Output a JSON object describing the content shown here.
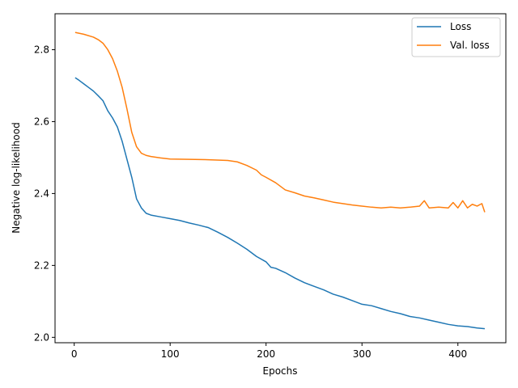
{
  "chart_data": {
    "type": "line",
    "title": "",
    "xlabel": "Epochs",
    "ylabel": "Negative log-likelihood",
    "xlim": [
      -20,
      450
    ],
    "ylim": [
      1.985,
      2.9
    ],
    "xticks": [
      0,
      100,
      200,
      300,
      400
    ],
    "yticks": [
      2.0,
      2.2,
      2.4,
      2.6,
      2.8
    ],
    "grid": false,
    "legend_position": "top-right",
    "series": [
      {
        "name": "Loss",
        "color": "#1f77b4",
        "x": [
          1,
          5,
          10,
          15,
          20,
          25,
          30,
          35,
          40,
          45,
          50,
          55,
          60,
          65,
          70,
          75,
          80,
          90,
          100,
          110,
          120,
          130,
          140,
          150,
          160,
          170,
          180,
          190,
          200,
          205,
          210,
          220,
          230,
          240,
          250,
          260,
          270,
          280,
          290,
          300,
          310,
          320,
          330,
          340,
          350,
          360,
          370,
          380,
          390,
          400,
          410,
          420,
          428
        ],
        "y": [
          2.722,
          2.715,
          2.705,
          2.695,
          2.685,
          2.672,
          2.658,
          2.63,
          2.61,
          2.585,
          2.545,
          2.495,
          2.445,
          2.385,
          2.36,
          2.345,
          2.34,
          2.335,
          2.33,
          2.325,
          2.318,
          2.312,
          2.305,
          2.292,
          2.278,
          2.262,
          2.245,
          2.225,
          2.21,
          2.195,
          2.192,
          2.18,
          2.165,
          2.152,
          2.142,
          2.132,
          2.12,
          2.112,
          2.102,
          2.092,
          2.088,
          2.08,
          2.072,
          2.066,
          2.058,
          2.054,
          2.048,
          2.042,
          2.036,
          2.032,
          2.03,
          2.026,
          2.024
        ]
      },
      {
        "name": "Val. loss",
        "color": "#ff7f0e",
        "x": [
          1,
          10,
          20,
          25,
          30,
          35,
          40,
          45,
          50,
          55,
          60,
          65,
          70,
          75,
          80,
          90,
          100,
          120,
          140,
          160,
          170,
          180,
          190,
          195,
          200,
          210,
          220,
          230,
          240,
          250,
          260,
          270,
          280,
          290,
          300,
          310,
          320,
          330,
          340,
          350,
          360,
          365,
          370,
          380,
          390,
          395,
          400,
          405,
          410,
          415,
          420,
          425,
          428
        ],
        "y": [
          2.848,
          2.843,
          2.835,
          2.828,
          2.818,
          2.8,
          2.775,
          2.74,
          2.695,
          2.635,
          2.57,
          2.53,
          2.512,
          2.506,
          2.503,
          2.499,
          2.496,
          2.495,
          2.494,
          2.492,
          2.488,
          2.478,
          2.465,
          2.452,
          2.445,
          2.43,
          2.41,
          2.402,
          2.393,
          2.388,
          2.382,
          2.376,
          2.372,
          2.368,
          2.365,
          2.362,
          2.36,
          2.362,
          2.36,
          2.362,
          2.365,
          2.38,
          2.36,
          2.362,
          2.36,
          2.375,
          2.36,
          2.38,
          2.36,
          2.37,
          2.365,
          2.372,
          2.348
        ]
      }
    ]
  }
}
